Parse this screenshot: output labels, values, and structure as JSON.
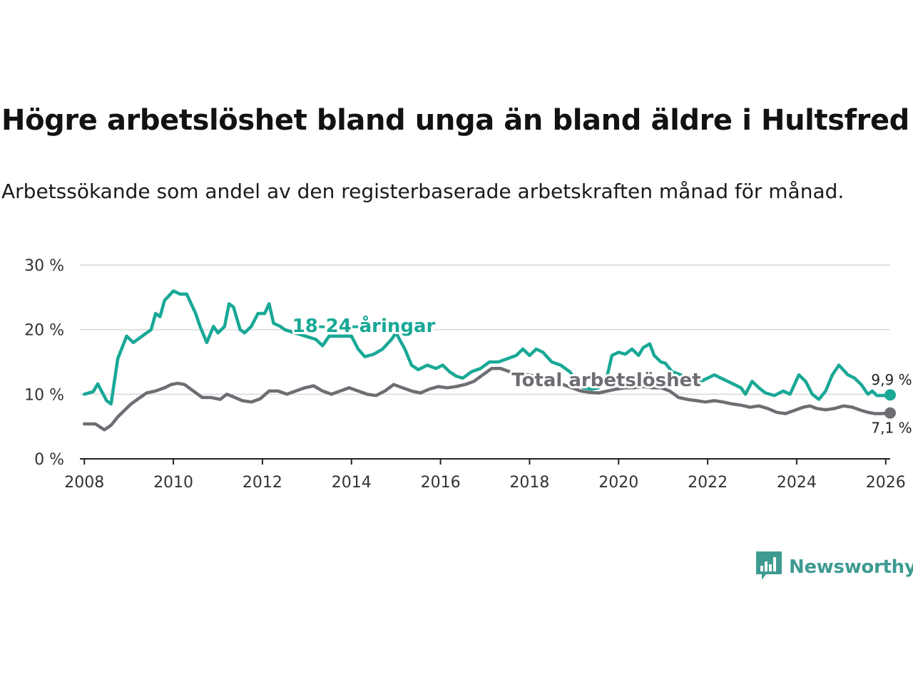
{
  "title": "Högre arbetslöshet bland unga än bland äldre i Hultsfred",
  "subtitle": "Arbetssökande som andel av den registerbaserade arbetskraften månad för månad.",
  "brand": {
    "name": "Newsworthy",
    "icon": "newsworthy-logo-icon",
    "color": "#3f9b92"
  },
  "colors": {
    "youth": "#19a896",
    "total": "#6e6d73",
    "axis": "#222222",
    "grid": "#d9d9d9"
  },
  "chart_data": {
    "type": "line",
    "x_axis": {
      "range": [
        2007.9,
        2026.1
      ],
      "ticks": [
        "2008",
        "2010",
        "2012",
        "2014",
        "2016",
        "2018",
        "2020",
        "2022",
        "2024",
        "2026"
      ]
    },
    "y_axis": {
      "range": [
        0,
        30
      ],
      "ticks": [
        0,
        10,
        20,
        30
      ],
      "tick_labels": [
        "0 %",
        "10 %",
        "20 %",
        "30 %"
      ],
      "grid": true
    },
    "series": [
      {
        "name": "18-24-åringar",
        "end_label": "9,9 %",
        "points": [
          [
            2008.0,
            10.0
          ],
          [
            2008.2,
            10.4
          ],
          [
            2008.3,
            11.6
          ],
          [
            2008.5,
            9.0
          ],
          [
            2008.6,
            8.5
          ],
          [
            2008.75,
            15.5
          ],
          [
            2008.95,
            19.0
          ],
          [
            2009.1,
            18.0
          ],
          [
            2009.3,
            19.0
          ],
          [
            2009.5,
            20.0
          ],
          [
            2009.6,
            22.5
          ],
          [
            2009.7,
            22.0
          ],
          [
            2009.8,
            24.5
          ],
          [
            2010.0,
            26.0
          ],
          [
            2010.15,
            25.5
          ],
          [
            2010.3,
            25.5
          ],
          [
            2010.5,
            22.5
          ],
          [
            2010.6,
            20.5
          ],
          [
            2010.75,
            18.0
          ],
          [
            2010.9,
            20.5
          ],
          [
            2011.0,
            19.5
          ],
          [
            2011.15,
            20.5
          ],
          [
            2011.25,
            24.0
          ],
          [
            2011.35,
            23.5
          ],
          [
            2011.5,
            20.0
          ],
          [
            2011.6,
            19.5
          ],
          [
            2011.75,
            20.5
          ],
          [
            2011.9,
            22.5
          ],
          [
            2012.05,
            22.5
          ],
          [
            2012.15,
            24.0
          ],
          [
            2012.25,
            21.0
          ],
          [
            2012.4,
            20.5
          ],
          [
            2012.5,
            20.0
          ],
          [
            2013.2,
            18.5
          ],
          [
            2013.35,
            17.5
          ],
          [
            2013.5,
            19.0
          ],
          [
            2014.0,
            19.0
          ],
          [
            2014.15,
            17.0
          ],
          [
            2014.3,
            15.8
          ],
          [
            2014.5,
            16.2
          ],
          [
            2014.7,
            17.0
          ],
          [
            2014.9,
            18.5
          ],
          [
            2015.0,
            19.5
          ],
          [
            2015.2,
            17.0
          ],
          [
            2015.35,
            14.5
          ],
          [
            2015.5,
            13.8
          ],
          [
            2015.7,
            14.5
          ],
          [
            2015.9,
            14.0
          ],
          [
            2016.05,
            14.5
          ],
          [
            2016.2,
            13.5
          ],
          [
            2016.35,
            12.8
          ],
          [
            2016.5,
            12.5
          ],
          [
            2016.7,
            13.5
          ],
          [
            2016.9,
            14.0
          ],
          [
            2017.1,
            15.0
          ],
          [
            2017.3,
            15.0
          ],
          [
            2017.5,
            15.5
          ],
          [
            2017.7,
            16.0
          ],
          [
            2017.85,
            17.0
          ],
          [
            2018.0,
            16.0
          ],
          [
            2018.15,
            17.0
          ],
          [
            2018.3,
            16.5
          ],
          [
            2018.5,
            15.0
          ],
          [
            2018.7,
            14.5
          ],
          [
            2018.9,
            13.5
          ],
          [
            2019.2,
            11.0
          ],
          [
            2019.4,
            10.8
          ],
          [
            2019.55,
            11.0
          ],
          [
            2019.75,
            13.0
          ],
          [
            2019.85,
            16.0
          ],
          [
            2020.0,
            16.5
          ],
          [
            2020.15,
            16.2
          ],
          [
            2020.3,
            17.0
          ],
          [
            2020.45,
            16.0
          ],
          [
            2020.55,
            17.2
          ],
          [
            2020.7,
            17.8
          ],
          [
            2020.8,
            16.0
          ],
          [
            2020.95,
            15.0
          ],
          [
            2021.05,
            14.8
          ],
          [
            2021.2,
            13.5
          ],
          [
            2021.4,
            13.0
          ],
          [
            2021.55,
            12.0
          ],
          [
            2021.7,
            11.5
          ],
          [
            2021.85,
            12.0
          ],
          [
            2022.0,
            12.5
          ],
          [
            2022.15,
            13.0
          ],
          [
            2022.3,
            12.5
          ],
          [
            2022.45,
            12.0
          ],
          [
            2022.6,
            11.5
          ],
          [
            2022.75,
            11.0
          ],
          [
            2022.85,
            10.0
          ],
          [
            2023.0,
            12.0
          ],
          [
            2023.15,
            11.0
          ],
          [
            2023.3,
            10.2
          ],
          [
            2023.5,
            9.8
          ],
          [
            2023.7,
            10.5
          ],
          [
            2023.85,
            10.0
          ],
          [
            2024.05,
            13.0
          ],
          [
            2024.2,
            12.0
          ],
          [
            2024.35,
            10.0
          ],
          [
            2024.5,
            9.2
          ],
          [
            2024.65,
            10.5
          ],
          [
            2024.8,
            13.0
          ],
          [
            2024.95,
            14.5
          ],
          [
            2025.15,
            13.0
          ],
          [
            2025.3,
            12.5
          ],
          [
            2025.45,
            11.5
          ],
          [
            2025.6,
            10.0
          ],
          [
            2025.7,
            10.5
          ],
          [
            2025.8,
            9.8
          ],
          [
            2026.0,
            9.8
          ],
          [
            2026.1,
            9.9
          ]
        ]
      },
      {
        "name": "Total arbetslöshet",
        "end_label": "7,1 %",
        "points": [
          [
            2008.0,
            5.4
          ],
          [
            2008.25,
            5.4
          ],
          [
            2008.45,
            4.5
          ],
          [
            2008.6,
            5.2
          ],
          [
            2008.75,
            6.5
          ],
          [
            2008.9,
            7.5
          ],
          [
            2009.05,
            8.5
          ],
          [
            2009.25,
            9.5
          ],
          [
            2009.4,
            10.2
          ],
          [
            2009.6,
            10.5
          ],
          [
            2009.8,
            11.0
          ],
          [
            2009.95,
            11.5
          ],
          [
            2010.1,
            11.7
          ],
          [
            2010.25,
            11.5
          ],
          [
            2010.45,
            10.5
          ],
          [
            2010.65,
            9.5
          ],
          [
            2010.85,
            9.5
          ],
          [
            2011.05,
            9.2
          ],
          [
            2011.2,
            10.0
          ],
          [
            2011.35,
            9.6
          ],
          [
            2011.55,
            9.0
          ],
          [
            2011.75,
            8.8
          ],
          [
            2011.95,
            9.3
          ],
          [
            2012.15,
            10.5
          ],
          [
            2012.35,
            10.5
          ],
          [
            2012.55,
            10.0
          ],
          [
            2012.75,
            10.5
          ],
          [
            2012.95,
            11.0
          ],
          [
            2013.15,
            11.3
          ],
          [
            2013.35,
            10.5
          ],
          [
            2013.55,
            10.0
          ],
          [
            2013.75,
            10.5
          ],
          [
            2013.95,
            11.0
          ],
          [
            2014.15,
            10.5
          ],
          [
            2014.35,
            10.0
          ],
          [
            2014.55,
            9.8
          ],
          [
            2014.75,
            10.5
          ],
          [
            2014.95,
            11.5
          ],
          [
            2015.15,
            11.0
          ],
          [
            2015.35,
            10.5
          ],
          [
            2015.55,
            10.2
          ],
          [
            2015.75,
            10.8
          ],
          [
            2015.95,
            11.2
          ],
          [
            2016.15,
            11.0
          ],
          [
            2016.35,
            11.2
          ],
          [
            2016.55,
            11.5
          ],
          [
            2016.75,
            12.0
          ],
          [
            2016.95,
            13.0
          ],
          [
            2017.15,
            14.0
          ],
          [
            2017.35,
            14.0
          ],
          [
            2017.55,
            13.5
          ],
          [
            2017.75,
            13.2
          ],
          [
            2017.95,
            13.0
          ],
          [
            2018.15,
            12.8
          ],
          [
            2018.35,
            12.5
          ],
          [
            2018.55,
            12.0
          ],
          [
            2018.75,
            11.5
          ],
          [
            2018.95,
            11.0
          ],
          [
            2019.15,
            10.5
          ],
          [
            2019.35,
            10.3
          ],
          [
            2019.55,
            10.2
          ],
          [
            2019.75,
            10.5
          ],
          [
            2019.95,
            10.8
          ],
          [
            2020.15,
            11.0
          ],
          [
            2020.35,
            11.0
          ],
          [
            2020.55,
            11.2
          ],
          [
            2020.75,
            11.0
          ],
          [
            2020.95,
            11.0
          ],
          [
            2021.15,
            10.5
          ],
          [
            2021.35,
            9.5
          ],
          [
            2021.55,
            9.2
          ],
          [
            2021.75,
            9.0
          ],
          [
            2021.95,
            8.8
          ],
          [
            2022.15,
            9.0
          ],
          [
            2022.35,
            8.8
          ],
          [
            2022.55,
            8.5
          ],
          [
            2022.75,
            8.3
          ],
          [
            2022.95,
            8.0
          ],
          [
            2023.15,
            8.2
          ],
          [
            2023.35,
            7.8
          ],
          [
            2023.55,
            7.2
          ],
          [
            2023.75,
            7.0
          ],
          [
            2023.95,
            7.5
          ],
          [
            2024.15,
            8.0
          ],
          [
            2024.3,
            8.2
          ],
          [
            2024.45,
            7.8
          ],
          [
            2024.65,
            7.6
          ],
          [
            2024.85,
            7.8
          ],
          [
            2025.05,
            8.2
          ],
          [
            2025.25,
            8.0
          ],
          [
            2025.45,
            7.5
          ],
          [
            2025.6,
            7.2
          ],
          [
            2025.75,
            7.0
          ],
          [
            2025.9,
            7.0
          ],
          [
            2026.1,
            7.1
          ]
        ]
      }
    ]
  }
}
